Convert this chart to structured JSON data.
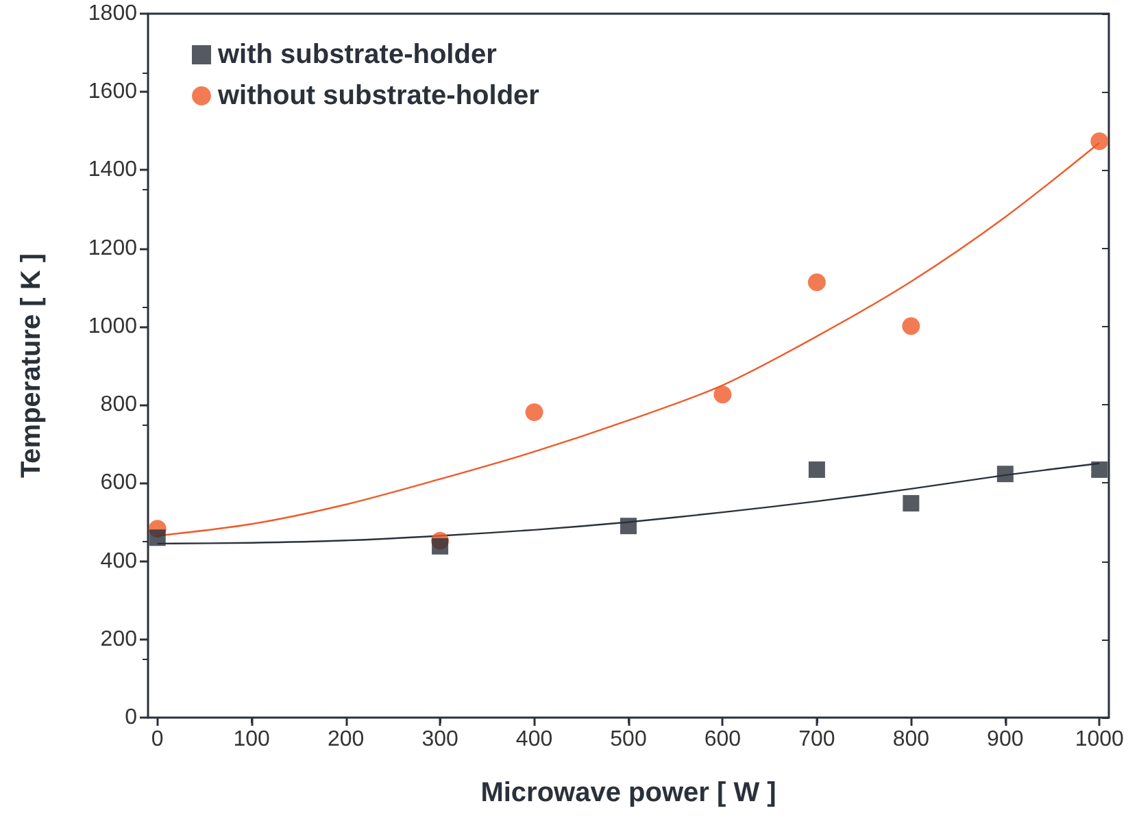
{
  "chart_data": {
    "type": "scatter",
    "xlabel": "Microwave power [ W ]",
    "ylabel": "Temperature [ K ]",
    "xlim": [
      -10,
      1010
    ],
    "xticks": [
      0,
      100,
      200,
      300,
      400,
      500,
      600,
      700,
      800,
      900,
      1000
    ],
    "ylim": [
      0,
      1800
    ],
    "yticks": [
      0,
      200,
      400,
      600,
      800,
      1000,
      1200,
      1400,
      1600,
      1800
    ],
    "grid": false,
    "legend": "top left",
    "series": [
      {
        "name": "with substrate-holder",
        "color": "#2b313b",
        "marker": "square",
        "x": [
          0,
          300,
          500,
          700,
          800,
          900,
          1000
        ],
        "values": [
          460,
          438,
          490,
          634,
          548,
          623,
          634
        ]
      },
      {
        "name": "without substrate-holder",
        "color": "#f05a28",
        "marker": "circle",
        "x": [
          0,
          300,
          400,
          600,
          700,
          800,
          1000
        ],
        "values": [
          483,
          452,
          781,
          826,
          1113,
          1001,
          1474
        ]
      },
      {
        "type": "line",
        "color": "#2b313b",
        "marker": "none",
        "x": [
          0,
          100,
          200,
          300,
          400,
          500,
          600,
          700,
          800,
          900,
          1000
        ],
        "values": [
          445,
          447,
          453,
          465,
          480,
          500,
          525,
          553,
          585,
          620,
          650
        ]
      },
      {
        "type": "line",
        "color": "#f05a28",
        "marker": "none",
        "x": [
          0,
          100,
          200,
          300,
          400,
          500,
          600,
          700,
          800,
          900,
          1000
        ],
        "values": [
          465,
          495,
          545,
          610,
          680,
          760,
          850,
          975,
          1115,
          1280,
          1470
        ]
      }
    ]
  }
}
